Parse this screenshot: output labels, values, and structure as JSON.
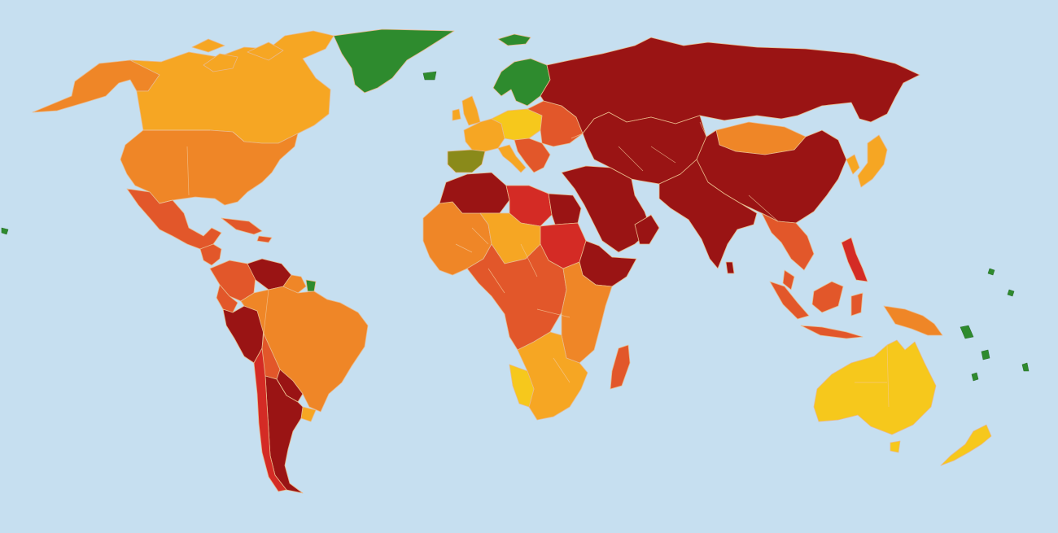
{
  "map": {
    "ocean_color": "#c6dff0",
    "border_color": "#f3c99b",
    "palette": {
      "green": "#2e8b2e",
      "olive": "#8a8a1a",
      "yellow": "#f6c81c",
      "light_orange": "#f6a623",
      "orange": "#ef8627",
      "red_orange": "#e2572a",
      "red": "#d42b25",
      "dark_red": "#9a1414"
    },
    "regions": [
      {
        "id": "alaska",
        "level": "orange"
      },
      {
        "id": "canada",
        "level": "light_orange"
      },
      {
        "id": "greenland",
        "level": "green"
      },
      {
        "id": "usa",
        "level": "orange"
      },
      {
        "id": "mexico",
        "level": "red_orange"
      },
      {
        "id": "central-america",
        "level": "red_orange"
      },
      {
        "id": "caribbean",
        "level": "red_orange"
      },
      {
        "id": "colombia",
        "level": "red_orange"
      },
      {
        "id": "venezuela",
        "level": "dark_red"
      },
      {
        "id": "guianas",
        "level": "orange"
      },
      {
        "id": "suriname",
        "level": "green"
      },
      {
        "id": "ecuador",
        "level": "red_orange"
      },
      {
        "id": "peru",
        "level": "dark_red"
      },
      {
        "id": "brazil",
        "level": "orange"
      },
      {
        "id": "bolivia",
        "level": "red_orange"
      },
      {
        "id": "paraguay",
        "level": "dark_red"
      },
      {
        "id": "argentina",
        "level": "dark_red"
      },
      {
        "id": "chile",
        "level": "red"
      },
      {
        "id": "uruguay",
        "level": "light_orange"
      },
      {
        "id": "iceland",
        "level": "green"
      },
      {
        "id": "scandinavia",
        "level": "green"
      },
      {
        "id": "uk-ireland",
        "level": "light_orange"
      },
      {
        "id": "western-europe",
        "level": "light_orange"
      },
      {
        "id": "central-europe",
        "level": "yellow"
      },
      {
        "id": "iberia",
        "level": "olive"
      },
      {
        "id": "italy",
        "level": "light_orange"
      },
      {
        "id": "balkans",
        "level": "red_orange"
      },
      {
        "id": "eastern-europe",
        "level": "red_orange"
      },
      {
        "id": "russia",
        "level": "dark_red"
      },
      {
        "id": "middle-east",
        "level": "dark_red"
      },
      {
        "id": "central-asia",
        "level": "dark_red"
      },
      {
        "id": "mongolia",
        "level": "orange"
      },
      {
        "id": "china",
        "level": "dark_red"
      },
      {
        "id": "south-asia",
        "level": "dark_red"
      },
      {
        "id": "southeast-asia",
        "level": "red_orange"
      },
      {
        "id": "korea-japan",
        "level": "light_orange"
      },
      {
        "id": "indonesia",
        "level": "red_orange"
      },
      {
        "id": "philippines",
        "level": "red"
      },
      {
        "id": "papua",
        "level": "orange"
      },
      {
        "id": "australia",
        "level": "yellow"
      },
      {
        "id": "new-zealand",
        "level": "yellow"
      },
      {
        "id": "west-africa",
        "level": "orange"
      },
      {
        "id": "sahara",
        "level": "dark_red"
      },
      {
        "id": "libya",
        "level": "red"
      },
      {
        "id": "egypt",
        "level": "dark_red"
      },
      {
        "id": "sahel",
        "level": "light_orange"
      },
      {
        "id": "sudan",
        "level": "red"
      },
      {
        "id": "horn-of-africa",
        "level": "dark_red"
      },
      {
        "id": "central-africa",
        "level": "red_orange"
      },
      {
        "id": "east-africa",
        "level": "orange"
      },
      {
        "id": "southern-africa",
        "level": "light_orange"
      },
      {
        "id": "namibia",
        "level": "yellow"
      },
      {
        "id": "madagascar",
        "level": "red_orange"
      }
    ]
  }
}
